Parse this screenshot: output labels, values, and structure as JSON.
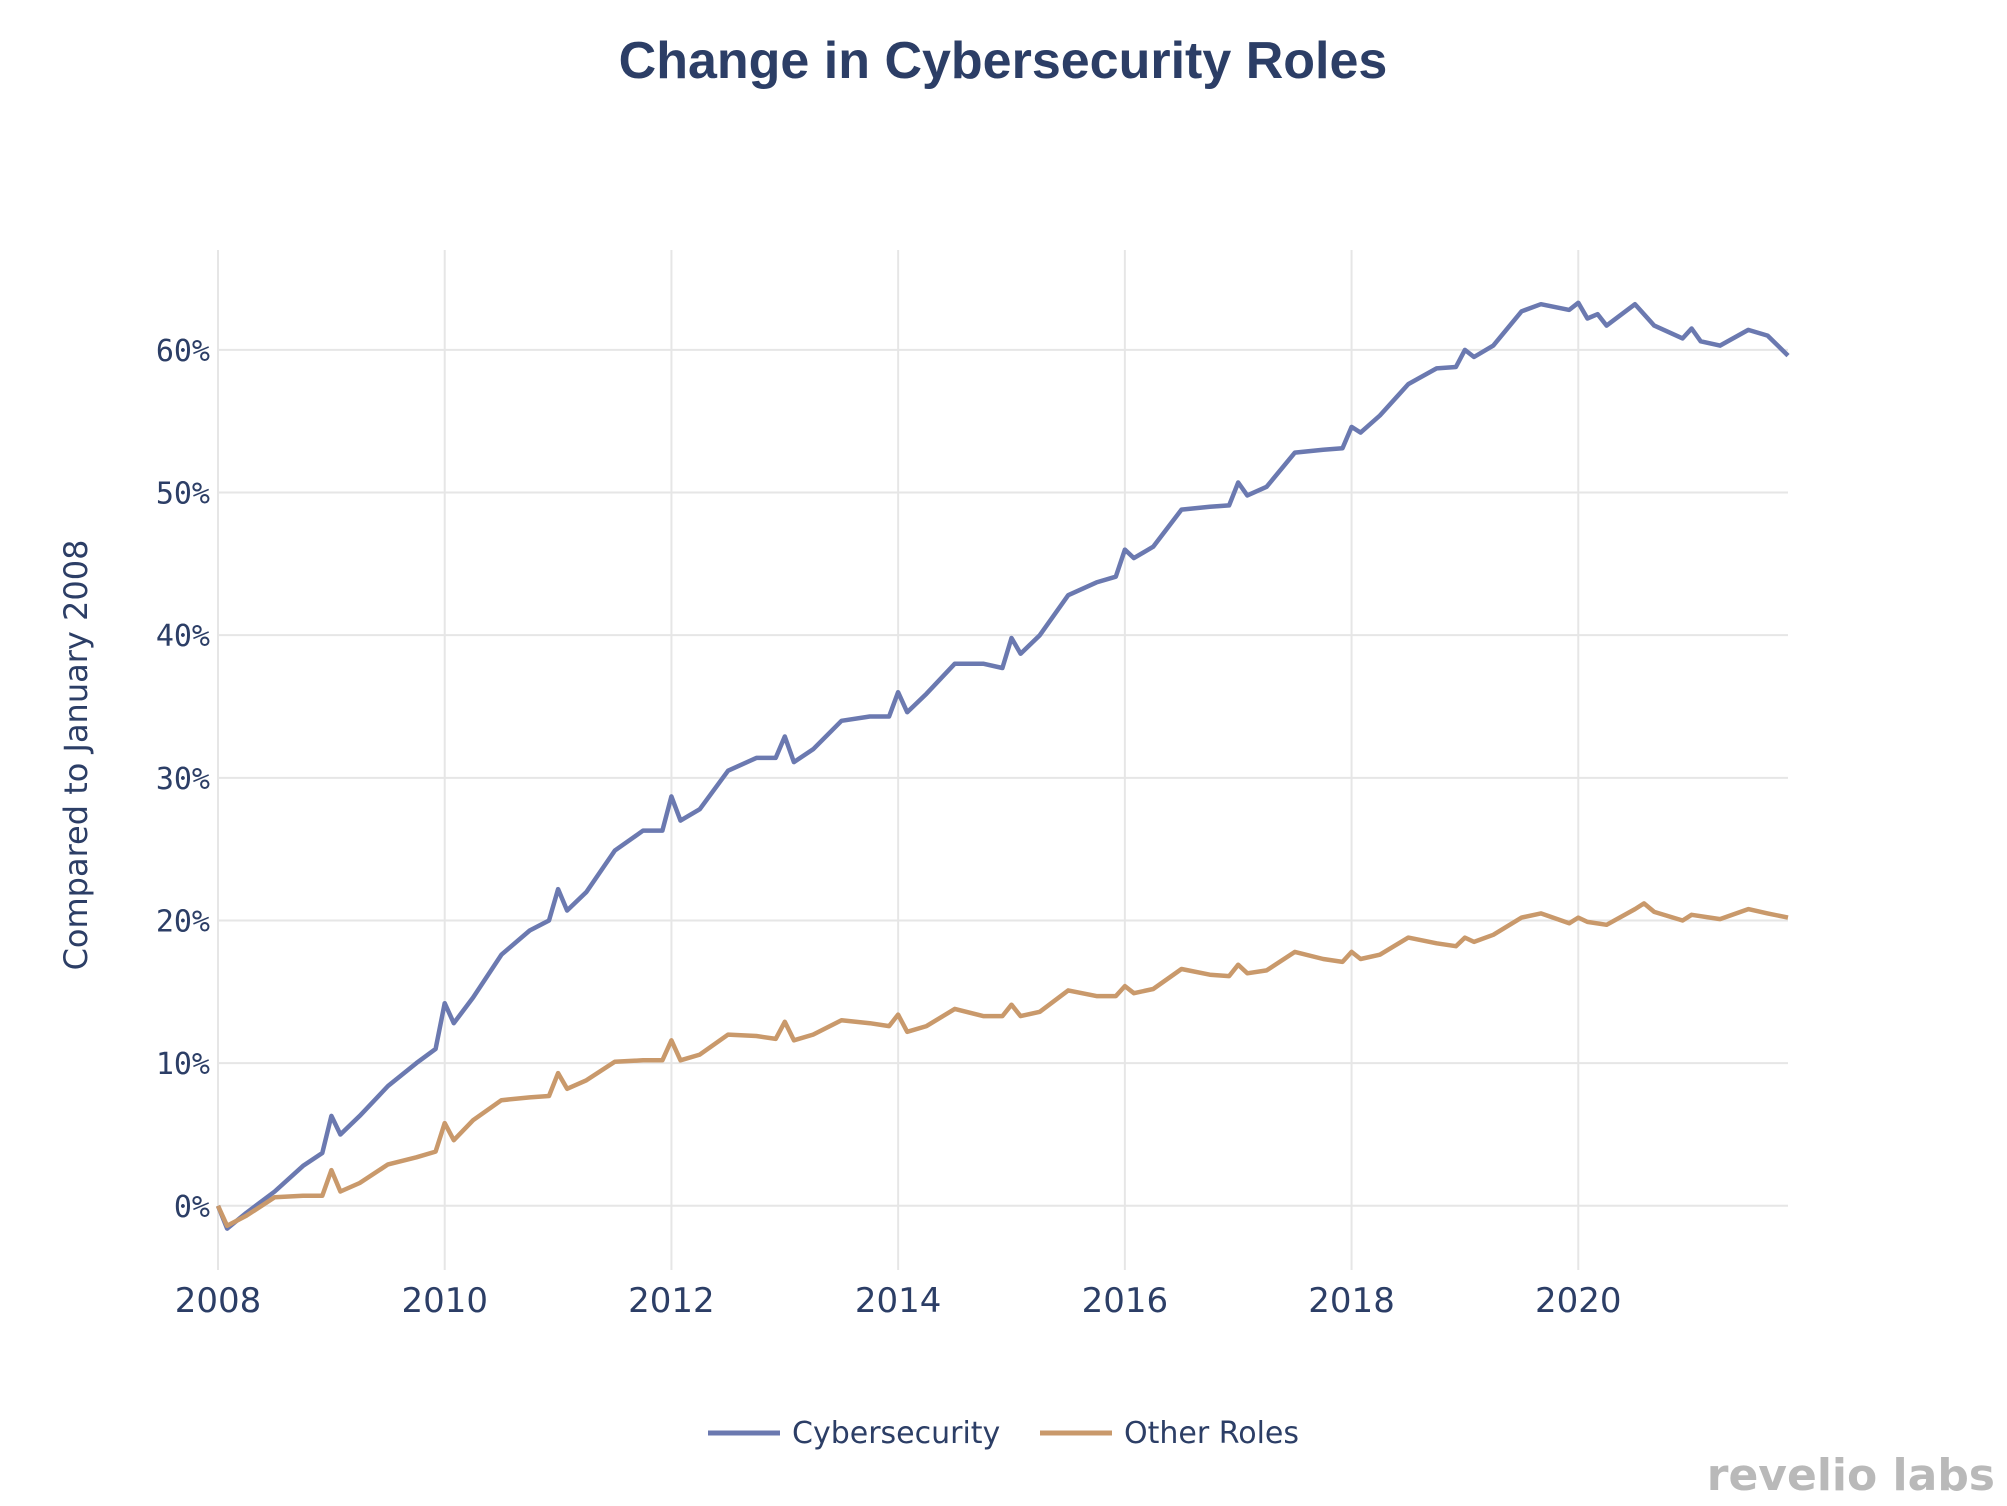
{
  "chart_data": {
    "type": "line",
    "title": "Change in Cybersecurity Roles",
    "xlabel": "",
    "ylabel": "Compared to January 2008",
    "xlim": [
      2008.0,
      2021.85
    ],
    "ylim": [
      -4.5,
      67
    ],
    "x_ticks": [
      2008,
      2010,
      2012,
      2014,
      2016,
      2018,
      2020
    ],
    "x_tick_labels": [
      "2008",
      "2010",
      "2012",
      "2014",
      "2016",
      "2018",
      "2020"
    ],
    "y_ticks": [
      0,
      10,
      20,
      30,
      40,
      50,
      60
    ],
    "y_tick_labels": [
      "0%",
      "10%",
      "20%",
      "30%",
      "40%",
      "50%",
      "60%"
    ],
    "grid": true,
    "legend_position": "bottom-center",
    "series": [
      {
        "name": "Cybersecurity",
        "color": "#6b79b0",
        "points": [
          [
            2008.0,
            0
          ],
          [
            2008.08,
            -1.6
          ],
          [
            2008.25,
            -0.5
          ],
          [
            2008.5,
            1.0
          ],
          [
            2008.75,
            2.8
          ],
          [
            2008.92,
            3.7
          ],
          [
            2009.0,
            6.3
          ],
          [
            2009.08,
            5.0
          ],
          [
            2009.25,
            6.3
          ],
          [
            2009.5,
            8.4
          ],
          [
            2009.75,
            10.0
          ],
          [
            2009.92,
            11.0
          ],
          [
            2010.0,
            14.2
          ],
          [
            2010.08,
            12.8
          ],
          [
            2010.25,
            14.6
          ],
          [
            2010.5,
            17.6
          ],
          [
            2010.75,
            19.3
          ],
          [
            2010.92,
            20.0
          ],
          [
            2011.0,
            22.2
          ],
          [
            2011.08,
            20.7
          ],
          [
            2011.25,
            22.0
          ],
          [
            2011.5,
            24.9
          ],
          [
            2011.75,
            26.3
          ],
          [
            2011.92,
            26.3
          ],
          [
            2012.0,
            28.7
          ],
          [
            2012.08,
            27.0
          ],
          [
            2012.25,
            27.8
          ],
          [
            2012.5,
            30.5
          ],
          [
            2012.75,
            31.4
          ],
          [
            2012.92,
            31.4
          ],
          [
            2013.0,
            32.9
          ],
          [
            2013.08,
            31.1
          ],
          [
            2013.25,
            32.0
          ],
          [
            2013.5,
            34.0
          ],
          [
            2013.75,
            34.3
          ],
          [
            2013.92,
            34.3
          ],
          [
            2014.0,
            36.0
          ],
          [
            2014.08,
            34.6
          ],
          [
            2014.25,
            35.9
          ],
          [
            2014.5,
            38.0
          ],
          [
            2014.75,
            38.0
          ],
          [
            2014.92,
            37.7
          ],
          [
            2015.0,
            39.8
          ],
          [
            2015.08,
            38.7
          ],
          [
            2015.25,
            40.0
          ],
          [
            2015.5,
            42.8
          ],
          [
            2015.75,
            43.7
          ],
          [
            2015.92,
            44.1
          ],
          [
            2016.0,
            46.0
          ],
          [
            2016.08,
            45.4
          ],
          [
            2016.25,
            46.2
          ],
          [
            2016.5,
            48.8
          ],
          [
            2016.75,
            49.0
          ],
          [
            2016.92,
            49.1
          ],
          [
            2017.0,
            50.7
          ],
          [
            2017.08,
            49.8
          ],
          [
            2017.25,
            50.4
          ],
          [
            2017.5,
            52.8
          ],
          [
            2017.75,
            53.0
          ],
          [
            2017.92,
            53.1
          ],
          [
            2018.0,
            54.6
          ],
          [
            2018.08,
            54.2
          ],
          [
            2018.25,
            55.4
          ],
          [
            2018.5,
            57.6
          ],
          [
            2018.75,
            58.7
          ],
          [
            2018.92,
            58.8
          ],
          [
            2019.0,
            60.0
          ],
          [
            2019.08,
            59.5
          ],
          [
            2019.25,
            60.3
          ],
          [
            2019.5,
            62.7
          ],
          [
            2019.67,
            63.2
          ],
          [
            2019.92,
            62.8
          ],
          [
            2020.0,
            63.3
          ],
          [
            2020.08,
            62.2
          ],
          [
            2020.17,
            62.5
          ],
          [
            2020.25,
            61.7
          ],
          [
            2020.5,
            63.2
          ],
          [
            2020.67,
            61.7
          ],
          [
            2020.92,
            60.8
          ],
          [
            2021.0,
            61.5
          ],
          [
            2021.08,
            60.6
          ],
          [
            2021.25,
            60.3
          ],
          [
            2021.5,
            61.4
          ],
          [
            2021.67,
            61.0
          ],
          [
            2021.85,
            59.6
          ]
        ]
      },
      {
        "name": "Other Roles",
        "color": "#c9996b",
        "points": [
          [
            2008.0,
            0
          ],
          [
            2008.08,
            -1.4
          ],
          [
            2008.25,
            -0.7
          ],
          [
            2008.5,
            0.6
          ],
          [
            2008.75,
            0.7
          ],
          [
            2008.92,
            0.7
          ],
          [
            2009.0,
            2.5
          ],
          [
            2009.08,
            1.0
          ],
          [
            2009.25,
            1.6
          ],
          [
            2009.5,
            2.9
          ],
          [
            2009.75,
            3.4
          ],
          [
            2009.92,
            3.8
          ],
          [
            2010.0,
            5.8
          ],
          [
            2010.08,
            4.6
          ],
          [
            2010.25,
            6.0
          ],
          [
            2010.5,
            7.4
          ],
          [
            2010.75,
            7.6
          ],
          [
            2010.92,
            7.7
          ],
          [
            2011.0,
            9.3
          ],
          [
            2011.08,
            8.2
          ],
          [
            2011.25,
            8.8
          ],
          [
            2011.5,
            10.1
          ],
          [
            2011.75,
            10.2
          ],
          [
            2011.92,
            10.2
          ],
          [
            2012.0,
            11.6
          ],
          [
            2012.08,
            10.2
          ],
          [
            2012.25,
            10.6
          ],
          [
            2012.5,
            12.0
          ],
          [
            2012.75,
            11.9
          ],
          [
            2012.92,
            11.7
          ],
          [
            2013.0,
            12.9
          ],
          [
            2013.08,
            11.6
          ],
          [
            2013.25,
            12.0
          ],
          [
            2013.5,
            13.0
          ],
          [
            2013.75,
            12.8
          ],
          [
            2013.92,
            12.6
          ],
          [
            2014.0,
            13.4
          ],
          [
            2014.08,
            12.2
          ],
          [
            2014.25,
            12.6
          ],
          [
            2014.5,
            13.8
          ],
          [
            2014.75,
            13.3
          ],
          [
            2014.92,
            13.3
          ],
          [
            2015.0,
            14.1
          ],
          [
            2015.08,
            13.3
          ],
          [
            2015.25,
            13.6
          ],
          [
            2015.5,
            15.1
          ],
          [
            2015.75,
            14.7
          ],
          [
            2015.92,
            14.7
          ],
          [
            2016.0,
            15.4
          ],
          [
            2016.08,
            14.9
          ],
          [
            2016.25,
            15.2
          ],
          [
            2016.5,
            16.6
          ],
          [
            2016.75,
            16.2
          ],
          [
            2016.92,
            16.1
          ],
          [
            2017.0,
            16.9
          ],
          [
            2017.08,
            16.3
          ],
          [
            2017.25,
            16.5
          ],
          [
            2017.5,
            17.8
          ],
          [
            2017.75,
            17.3
          ],
          [
            2017.92,
            17.1
          ],
          [
            2018.0,
            17.8
          ],
          [
            2018.08,
            17.3
          ],
          [
            2018.25,
            17.6
          ],
          [
            2018.5,
            18.8
          ],
          [
            2018.75,
            18.4
          ],
          [
            2018.92,
            18.2
          ],
          [
            2019.0,
            18.8
          ],
          [
            2019.08,
            18.5
          ],
          [
            2019.25,
            19.0
          ],
          [
            2019.5,
            20.2
          ],
          [
            2019.67,
            20.5
          ],
          [
            2019.92,
            19.8
          ],
          [
            2020.0,
            20.2
          ],
          [
            2020.08,
            19.9
          ],
          [
            2020.25,
            19.7
          ],
          [
            2020.5,
            20.8
          ],
          [
            2020.58,
            21.2
          ],
          [
            2020.67,
            20.6
          ],
          [
            2020.92,
            20.0
          ],
          [
            2021.0,
            20.4
          ],
          [
            2021.25,
            20.1
          ],
          [
            2021.5,
            20.8
          ],
          [
            2021.67,
            20.5
          ],
          [
            2021.85,
            20.2
          ]
        ]
      }
    ]
  },
  "branding": {
    "logo_text": "revelio labs"
  }
}
